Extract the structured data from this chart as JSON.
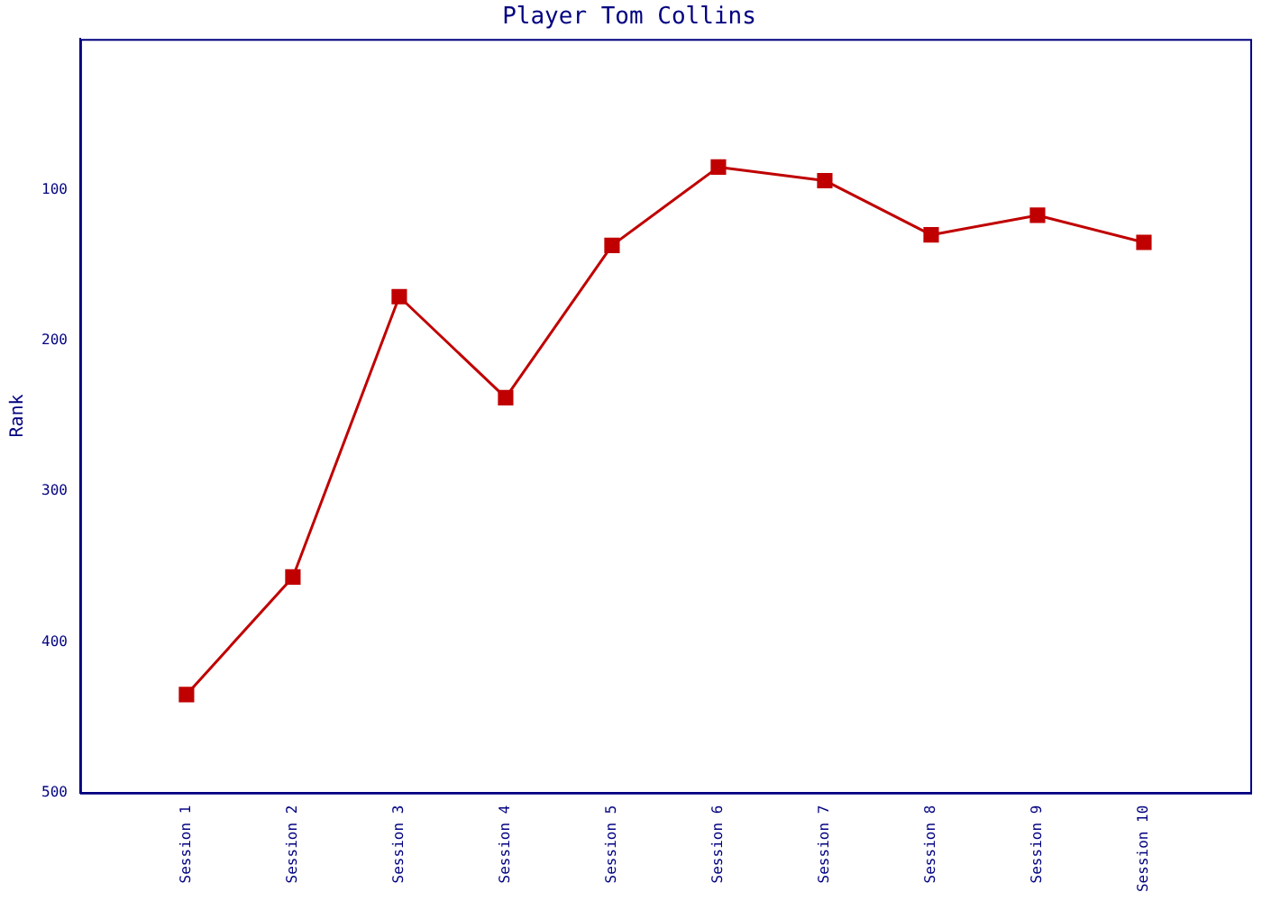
{
  "chart_data": {
    "type": "line",
    "title": "Player Tom Collins",
    "ylabel": "Rank",
    "categories": [
      "Session 1",
      "Session 2",
      "Session 3",
      "Session 4",
      "Session 5",
      "Session 6",
      "Session 7",
      "Session 8",
      "Session 9",
      "Session 10"
    ],
    "series": [
      {
        "color": "#c00000",
        "values": [
          435,
          357,
          171,
          238,
          137,
          85,
          94,
          130,
          117,
          135
        ]
      }
    ],
    "ylim": [
      500,
      0
    ],
    "yticks": [
      100,
      200,
      300,
      400,
      500
    ],
    "marker": "square",
    "line_style": "solid",
    "grid": false,
    "legend": false
  }
}
